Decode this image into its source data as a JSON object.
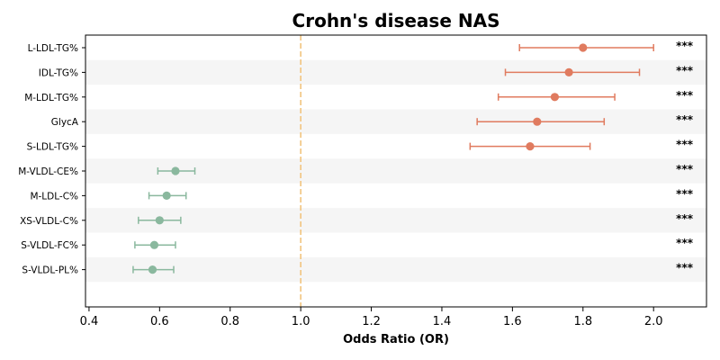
{
  "chart_data": {
    "type": "forest",
    "title": "Crohn's disease NAS",
    "xlabel": "Odds Ratio (OR)",
    "ylabel": "",
    "xlim": [
      0.39,
      2.15
    ],
    "xticks": [
      "0.4",
      "0.6",
      "0.8",
      "1.0",
      "1.2",
      "1.4",
      "1.6",
      "1.8",
      "2.0"
    ],
    "reference_line": 1.0,
    "row_banding": true,
    "rows": [
      {
        "label": "L-LDL-TG%",
        "or": 1.8,
        "ci_low": 1.62,
        "ci_high": 2.0,
        "sig": "***",
        "direction": "risk"
      },
      {
        "label": "IDL-TG%",
        "or": 1.76,
        "ci_low": 1.58,
        "ci_high": 1.96,
        "sig": "***",
        "direction": "risk"
      },
      {
        "label": "M-LDL-TG%",
        "or": 1.72,
        "ci_low": 1.56,
        "ci_high": 1.89,
        "sig": "***",
        "direction": "risk"
      },
      {
        "label": "GlycA",
        "or": 1.67,
        "ci_low": 1.5,
        "ci_high": 1.86,
        "sig": "***",
        "direction": "risk"
      },
      {
        "label": "S-LDL-TG%",
        "or": 1.65,
        "ci_low": 1.48,
        "ci_high": 1.82,
        "sig": "***",
        "direction": "risk"
      },
      {
        "label": "M-VLDL-CE%",
        "or": 0.645,
        "ci_low": 0.595,
        "ci_high": 0.7,
        "sig": "***",
        "direction": "protective"
      },
      {
        "label": "M-LDL-C%",
        "or": 0.62,
        "ci_low": 0.57,
        "ci_high": 0.675,
        "sig": "***",
        "direction": "protective"
      },
      {
        "label": "XS-VLDL-C%",
        "or": 0.6,
        "ci_low": 0.54,
        "ci_high": 0.66,
        "sig": "***",
        "direction": "protective"
      },
      {
        "label": "S-VLDL-FC%",
        "or": 0.585,
        "ci_low": 0.53,
        "ci_high": 0.645,
        "sig": "***",
        "direction": "protective"
      },
      {
        "label": "S-VLDL-PL%",
        "or": 0.58,
        "ci_low": 0.525,
        "ci_high": 0.64,
        "sig": "***",
        "direction": "protective"
      }
    ],
    "colors": {
      "risk": "#e07b5f",
      "protective": "#8ab89e",
      "reference": "#f2c47e",
      "band": "#f5f5f5"
    }
  }
}
